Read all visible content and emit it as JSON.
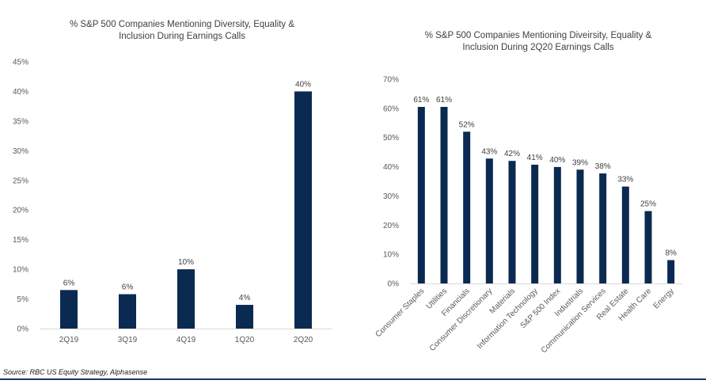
{
  "chart_data": [
    {
      "type": "bar",
      "title": "% S&P 500 Companies Mentioning Diversity, Equality & Inclusion During Earnings Calls",
      "title_lines": [
        "% S&P 500 Companies Mentioning Diversity, Equality &",
        "Inclusion During Earnings Calls"
      ],
      "categories": [
        "2Q19",
        "3Q19",
        "4Q19",
        "1Q20",
        "2Q20"
      ],
      "values": [
        6.5,
        5.8,
        10,
        4,
        40
      ],
      "data_labels": [
        "6%",
        "6%",
        "10%",
        "4%",
        "40%"
      ],
      "ylim": [
        0,
        45
      ],
      "yticks": [
        "0%",
        "5%",
        "10%",
        "15%",
        "20%",
        "25%",
        "30%",
        "35%",
        "40%",
        "45%"
      ],
      "grid": false,
      "bar_color": "#0b2a52"
    },
    {
      "type": "bar",
      "title": "% S&P 500 Companies Mentioning Diveirsity, Equality & Inclusion During 2Q20 Earnings Calls",
      "title_lines": [
        "% S&P 500 Companies Mentioning Diveirsity, Equality &",
        "Inclusion During 2Q20 Earnings Calls"
      ],
      "categories": [
        "Consumer Staples",
        "Utilities",
        "Financials",
        "Consumer Discretionary",
        "Materials",
        "Information Technology",
        "S&P 500 Index",
        "Industrials",
        "Communication Services",
        "Real Estate",
        "Health Care",
        "Energy"
      ],
      "values": [
        60.5,
        60.5,
        52,
        42.8,
        42,
        40.7,
        39.9,
        39,
        37.7,
        33.2,
        24.8,
        8
      ],
      "data_labels": [
        "61%",
        "61%",
        "52%",
        "43%",
        "42%",
        "41%",
        "40%",
        "39%",
        "38%",
        "33%",
        "25%",
        "8%"
      ],
      "ylim": [
        0,
        70
      ],
      "yticks": [
        "0%",
        "10%",
        "20%",
        "30%",
        "40%",
        "50%",
        "60%",
        "70%"
      ],
      "grid": false,
      "bar_color": "#0b2a52"
    }
  ],
  "source": "Source: RBC US Equity Strategy, Alphasense"
}
